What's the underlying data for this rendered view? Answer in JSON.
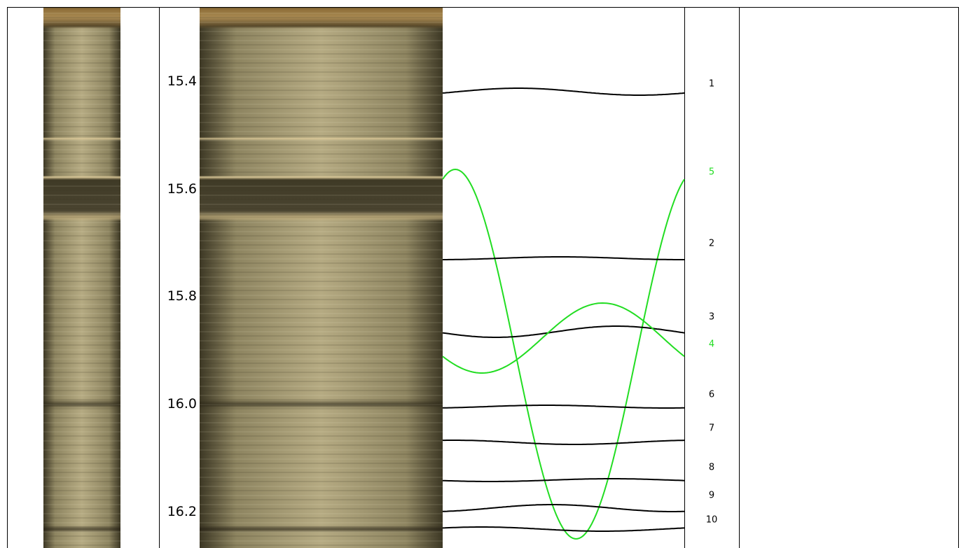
{
  "depth_scale": {
    "labels": [
      "15.4",
      "15.6",
      "15.8",
      "16.0",
      "16.2"
    ]
  },
  "features": [
    {
      "label": "1",
      "color": "#000000"
    },
    {
      "label": "5",
      "color": "#22dd22"
    },
    {
      "label": "2",
      "color": "#000000"
    },
    {
      "label": "3",
      "color": "#000000"
    },
    {
      "label": "4",
      "color": "#22dd22"
    },
    {
      "label": "6",
      "color": "#000000"
    },
    {
      "label": "7",
      "color": "#000000"
    },
    {
      "label": "8",
      "color": "#000000"
    },
    {
      "label": "9",
      "color": "#000000"
    },
    {
      "label": "10",
      "color": "#000000"
    }
  ]
}
